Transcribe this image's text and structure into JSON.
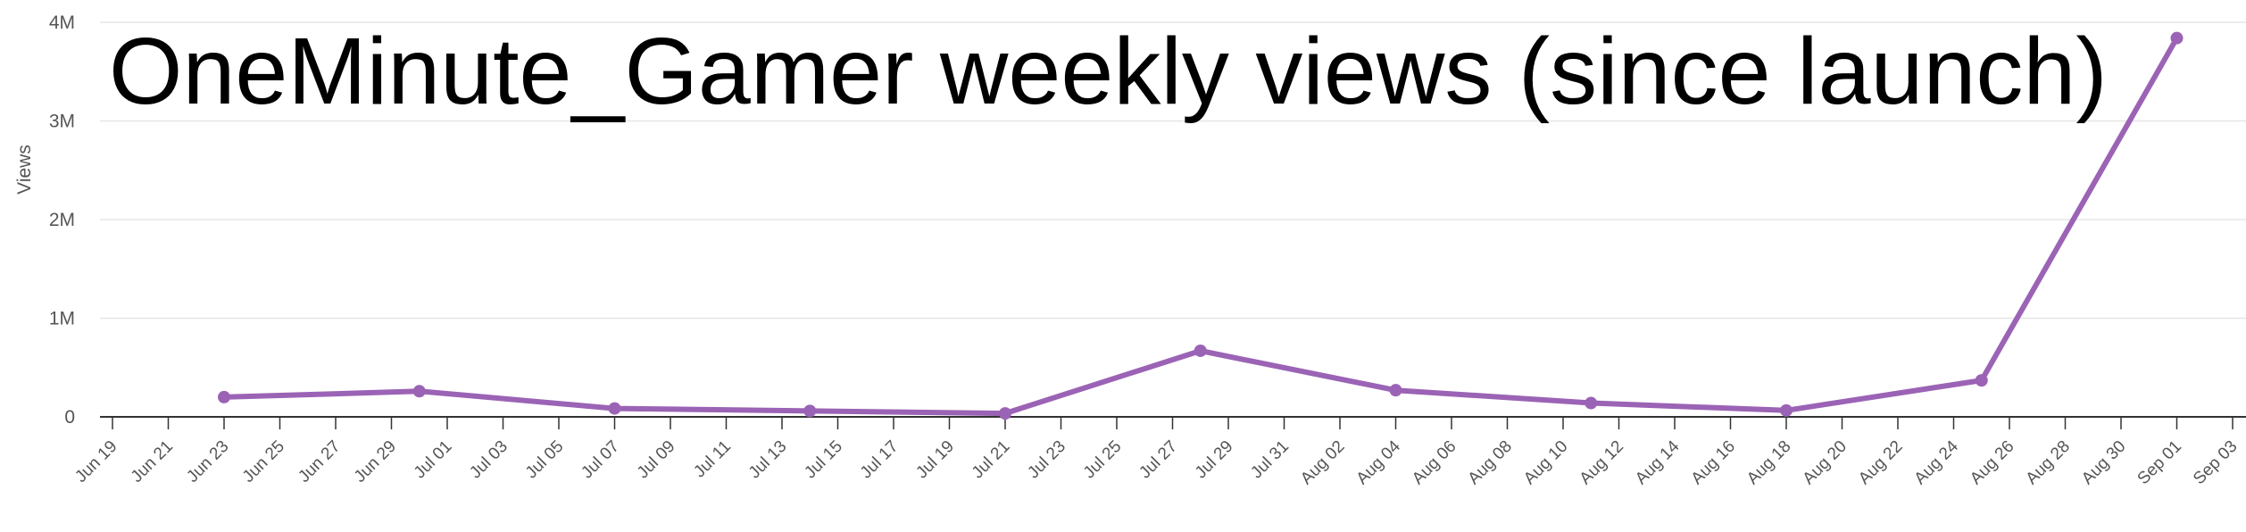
{
  "chart_data": {
    "type": "line",
    "title": "OneMinute_Gamer weekly views (since launch)",
    "xlabel": "",
    "ylabel": "Views",
    "y_ticks": [
      {
        "value": 0,
        "label": "0"
      },
      {
        "value": 1000000,
        "label": "1M"
      },
      {
        "value": 2000000,
        "label": "2M"
      },
      {
        "value": 3000000,
        "label": "3M"
      },
      {
        "value": 4000000,
        "label": "4M"
      }
    ],
    "ylim": [
      0,
      4000000
    ],
    "x_tick_labels": [
      "Jun 19",
      "Jun 21",
      "Jun 23",
      "Jun 25",
      "Jun 27",
      "Jun 29",
      "Jul 01",
      "Jul 03",
      "Jul 05",
      "Jul 07",
      "Jul 09",
      "Jul 11",
      "Jul 13",
      "Jul 15",
      "Jul 17",
      "Jul 19",
      "Jul 21",
      "Jul 23",
      "Jul 25",
      "Jul 27",
      "Jul 29",
      "Jul 31",
      "Aug 02",
      "Aug 04",
      "Aug 06",
      "Aug 08",
      "Aug 10",
      "Aug 12",
      "Aug 14",
      "Aug 16",
      "Aug 18",
      "Aug 20",
      "Aug 22",
      "Aug 24",
      "Aug 26",
      "Aug 28",
      "Aug 30",
      "Sep 01",
      "Sep 03"
    ],
    "grid": true,
    "series": [
      {
        "color": "#9b63b5",
        "points": [
          {
            "x": "Jun 23",
            "y": 200000
          },
          {
            "x": "Jun 30",
            "y": 260000
          },
          {
            "x": "Jul 07",
            "y": 85000
          },
          {
            "x": "Jul 14",
            "y": 60000
          },
          {
            "x": "Jul 21",
            "y": 35000
          },
          {
            "x": "Jul 28",
            "y": 670000
          },
          {
            "x": "Aug 04",
            "y": 270000
          },
          {
            "x": "Aug 11",
            "y": 140000
          },
          {
            "x": "Aug 18",
            "y": 65000
          },
          {
            "x": "Aug 25",
            "y": 370000
          },
          {
            "x": "Sep 01",
            "y": 3840000
          }
        ]
      }
    ]
  }
}
